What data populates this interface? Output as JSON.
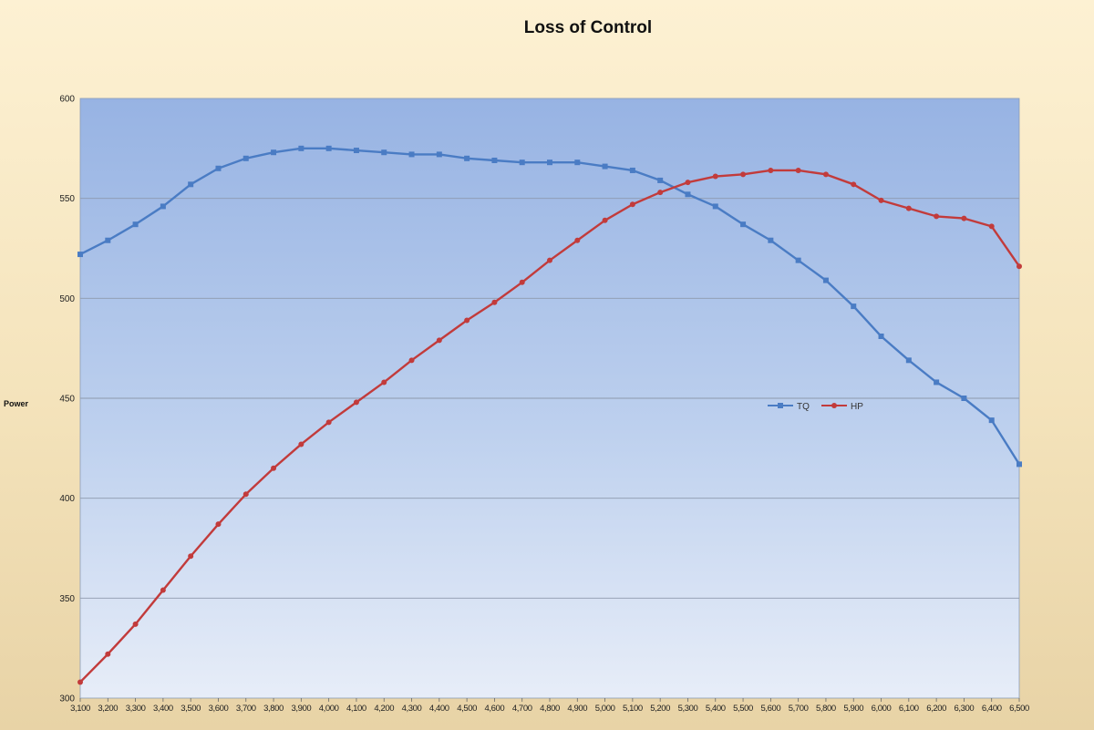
{
  "chart_data": {
    "type": "line",
    "title": "Loss of Control",
    "xlabel": "",
    "ylabel": "Power",
    "ylim": [
      300,
      600
    ],
    "yticks": [
      "300",
      "350",
      "400",
      "450",
      "500",
      "550",
      "600"
    ],
    "grid": true,
    "legend_placement": "center-right",
    "categories": [
      "3,100",
      "3,200",
      "3,300",
      "3,400",
      "3,500",
      "3,600",
      "3,700",
      "3,800",
      "3,900",
      "4,000",
      "4,100",
      "4,200",
      "4,300",
      "4,400",
      "4,500",
      "4,600",
      "4,700",
      "4,800",
      "4,900",
      "5,000",
      "5,100",
      "5,200",
      "5,300",
      "5,400",
      "5,500",
      "5,600",
      "5,700",
      "5,800",
      "5,900",
      "6,000",
      "6,100",
      "6,200",
      "6,300",
      "6,400",
      "6,500"
    ],
    "series": [
      {
        "name": "TQ",
        "color": "#4a7cc4",
        "marker": "square",
        "values": [
          522,
          529,
          537,
          546,
          557,
          565,
          570,
          573,
          575,
          575,
          574,
          573,
          572,
          572,
          570,
          569,
          568,
          568,
          568,
          566,
          564,
          559,
          552,
          546,
          537,
          529,
          519,
          509,
          496,
          481,
          469,
          458,
          450,
          439,
          417
        ]
      },
      {
        "name": "HP",
        "color": "#c23b3b",
        "marker": "circle",
        "values": [
          308,
          322,
          337,
          354,
          371,
          387,
          402,
          415,
          427,
          438,
          448,
          458,
          469,
          479,
          489,
          498,
          508,
          519,
          529,
          539,
          547,
          553,
          558,
          561,
          562,
          564,
          564,
          562,
          557,
          549,
          545,
          541,
          540,
          536,
          516
        ]
      }
    ]
  }
}
